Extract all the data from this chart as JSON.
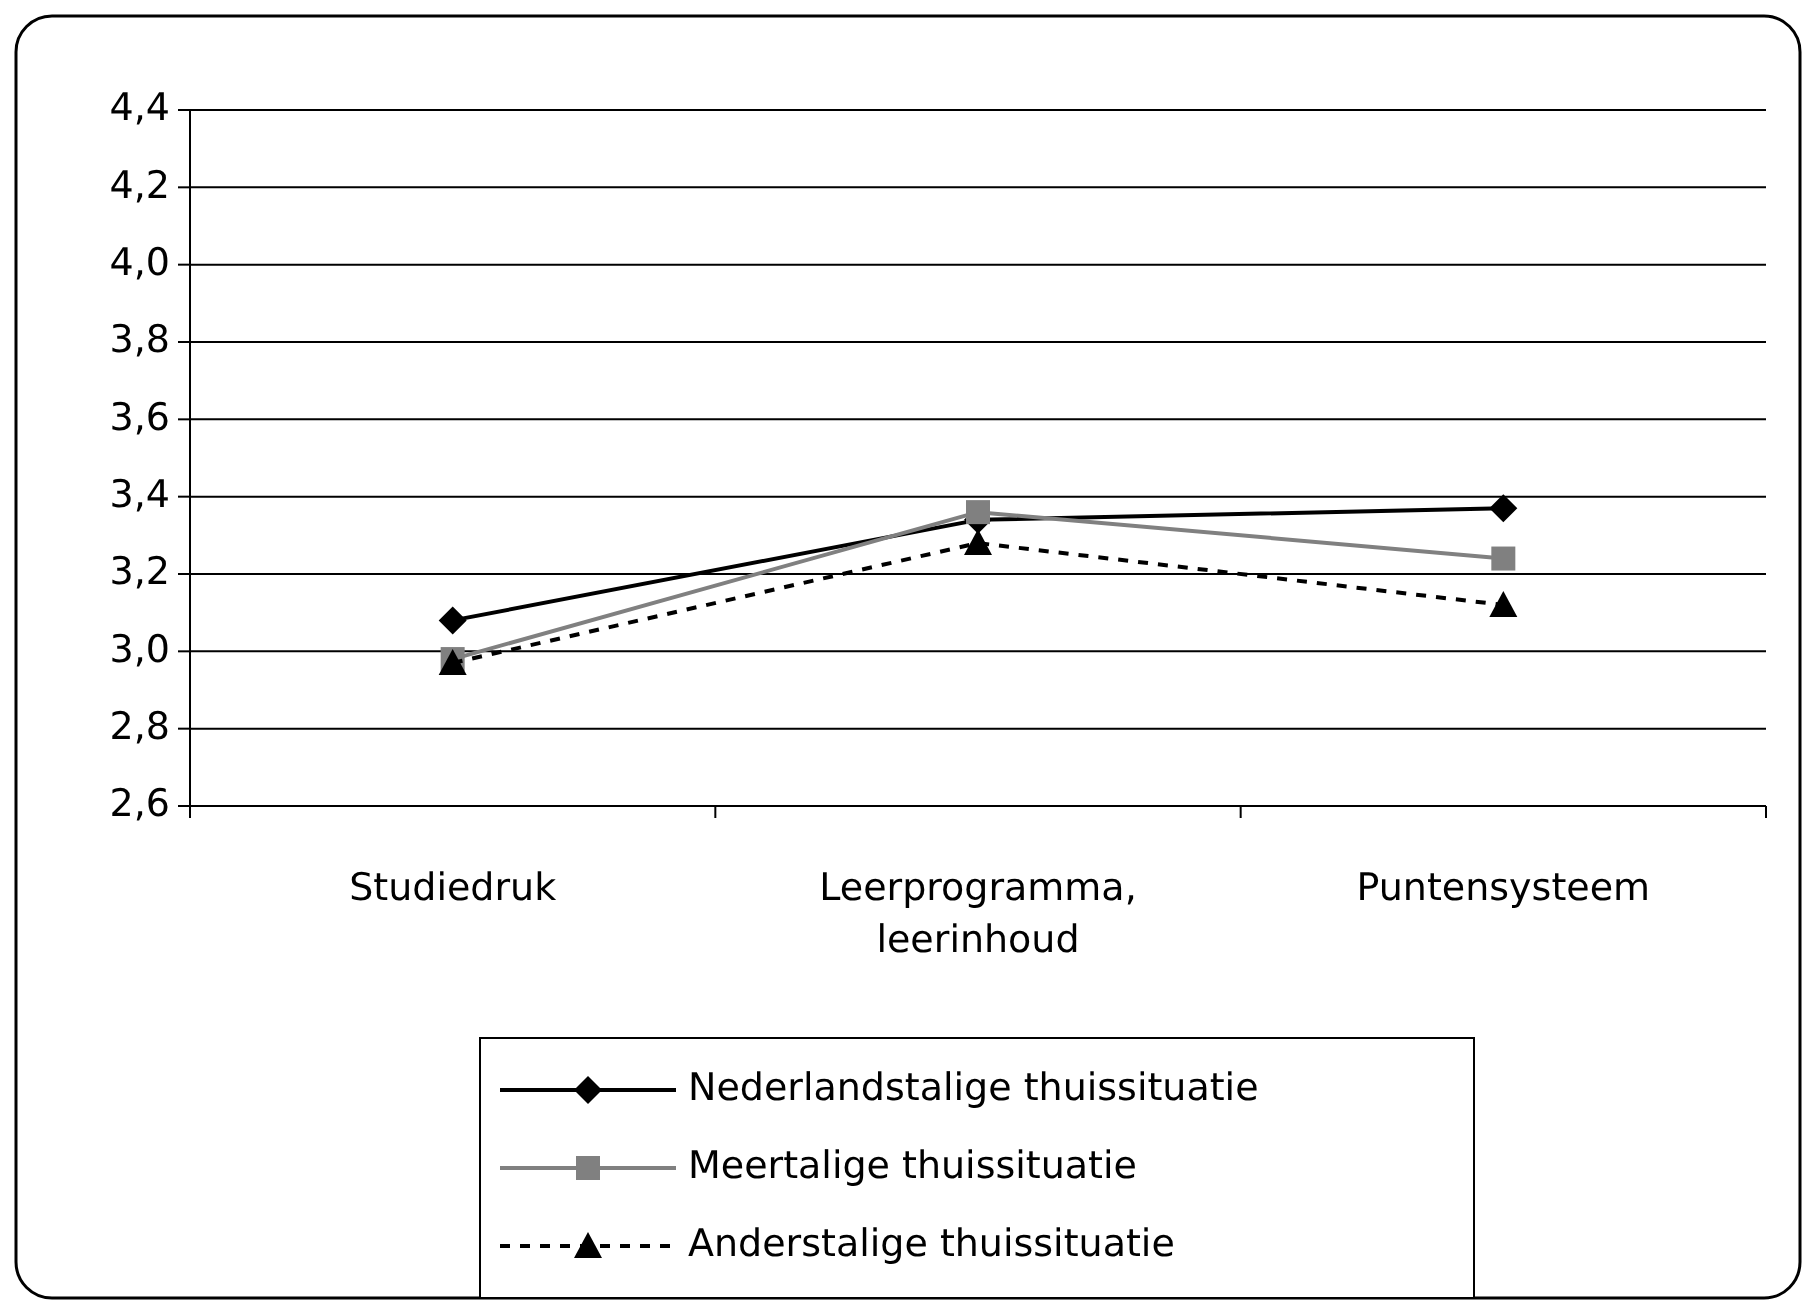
{
  "chart_data": {
    "type": "line",
    "categories": [
      "Studiedruk",
      "Leerprogramma, leerinhoud",
      "Puntensysteem"
    ],
    "ylim": [
      2.6,
      4.4
    ],
    "yticks": [
      {
        "value": 2.6,
        "label": "2,6"
      },
      {
        "value": 2.8,
        "label": "2,8"
      },
      {
        "value": 3.0,
        "label": "3,0"
      },
      {
        "value": 3.2,
        "label": "3,2"
      },
      {
        "value": 3.4,
        "label": "3,4"
      },
      {
        "value": 3.6,
        "label": "3,6"
      },
      {
        "value": 3.8,
        "label": "3,8"
      },
      {
        "value": 4.0,
        "label": "4,0"
      },
      {
        "value": 4.2,
        "label": "4,2"
      },
      {
        "value": 4.4,
        "label": "4,4"
      }
    ],
    "grid": "y",
    "legend": "bottom",
    "series": [
      {
        "name": "Nederlandstalige thuissituatie",
        "color": "#000000",
        "values": [
          3.08,
          3.34,
          3.37
        ],
        "marker": "diamond",
        "line_style": "solid"
      },
      {
        "name": "Meertalige thuissituatie",
        "color": "#808080",
        "values": [
          2.98,
          3.36,
          3.24
        ],
        "marker": "square",
        "line_style": "solid"
      },
      {
        "name": "Anderstalige thuissituatie",
        "color": "#000000",
        "values": [
          2.97,
          3.28,
          3.12
        ],
        "marker": "triangle",
        "line_style": "dashed"
      }
    ]
  }
}
